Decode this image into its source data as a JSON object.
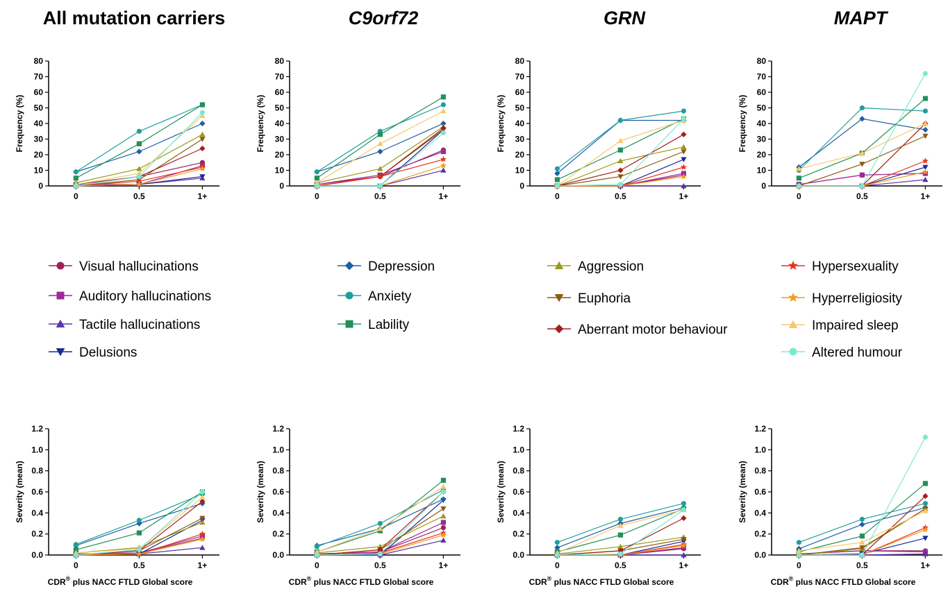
{
  "chart_data": {
    "type": "line",
    "columns": [
      {
        "title": "All mutation carriers",
        "italic": false
      },
      {
        "title": "C9orf72",
        "italic": true
      },
      {
        "title": "GRN",
        "italic": true
      },
      {
        "title": "MAPT",
        "italic": true
      }
    ],
    "x_categories": [
      "0",
      "0.5",
      "1+"
    ],
    "frequency_axis": {
      "ylabel": "Frequency (%)",
      "ylim": [
        0,
        80
      ],
      "ticks": [
        "0",
        "10",
        "20",
        "30",
        "40",
        "50",
        "60",
        "70",
        "80"
      ]
    },
    "severity_axis": {
      "ylabel": "Severity (mean)",
      "xlabel_main": "CDR",
      "xlabel_sup": "®",
      "xlabel_rest": " plus NACC FTLD Global score",
      "ylim": [
        0,
        1.2
      ],
      "ticks": [
        "0.0",
        "0.2",
        "0.4",
        "0.6",
        "0.8",
        "1.0",
        "1.2"
      ]
    },
    "series": [
      {
        "name": "Visual hallucinations",
        "color": "#9b2457",
        "marker": "circle"
      },
      {
        "name": "Auditory hallucinations",
        "color": "#9c2a9c",
        "marker": "square"
      },
      {
        "name": "Tactile hallucinations",
        "color": "#5a35a8",
        "marker": "triangle-up"
      },
      {
        "name": "Delusions",
        "color": "#1a2a96",
        "marker": "triangle-down"
      },
      {
        "name": "Depression",
        "color": "#1f5fa6",
        "marker": "diamond"
      },
      {
        "name": "Anxiety",
        "color": "#1f9e9e",
        "marker": "circle"
      },
      {
        "name": "Lability",
        "color": "#21915a",
        "marker": "square"
      },
      {
        "name": "Aggression",
        "color": "#9a9a1e",
        "marker": "triangle-up"
      },
      {
        "name": "Euphoria",
        "color": "#8c5a10",
        "marker": "triangle-down"
      },
      {
        "name": "Aberrant motor behaviour",
        "color": "#a3201f",
        "marker": "diamond"
      },
      {
        "name": "Hypersexuality",
        "color": "#e8321e",
        "marker": "star"
      },
      {
        "name": "Hyperreligiosity",
        "color": "#f39a1a",
        "marker": "star"
      },
      {
        "name": "Impaired sleep",
        "color": "#f7c86a",
        "marker": "triangle-up"
      },
      {
        "name": "Altered humour",
        "color": "#7de8d2",
        "marker": "circle"
      }
    ],
    "frequency": [
      [
        [
          1,
          6,
          15
        ],
        [
          1,
          1,
          13
        ],
        [
          0,
          1,
          5
        ],
        [
          0,
          1,
          6
        ],
        [
          9,
          22,
          40
        ],
        [
          9,
          35,
          52
        ],
        [
          5,
          27,
          52
        ],
        [
          2,
          11,
          33
        ],
        [
          0,
          4,
          30
        ],
        [
          0,
          6,
          24
        ],
        [
          0,
          3,
          12
        ],
        [
          0,
          1,
          11
        ],
        [
          1,
          8,
          45
        ],
        [
          0,
          6,
          47
        ]
      ],
      [
        [
          1,
          6,
          23
        ],
        [
          1,
          7,
          22
        ],
        [
          0,
          0,
          10
        ],
        [
          0,
          0,
          36
        ],
        [
          9,
          22,
          40
        ],
        [
          9,
          35,
          52
        ],
        [
          5,
          33,
          57
        ],
        [
          2,
          11,
          38
        ],
        [
          0,
          6,
          36
        ],
        [
          0,
          6,
          37
        ],
        [
          0,
          6,
          17
        ],
        [
          0,
          0,
          13
        ],
        [
          2,
          27,
          48
        ],
        [
          0,
          0,
          34
        ]
      ],
      [
        [
          0,
          0,
          7
        ],
        [
          0,
          0,
          8
        ],
        [
          0,
          0,
          0
        ],
        [
          0,
          0,
          17
        ],
        [
          8,
          42,
          42
        ],
        [
          11,
          42,
          48
        ],
        [
          4,
          23,
          43
        ],
        [
          0,
          16,
          25
        ],
        [
          0,
          6,
          22
        ],
        [
          0,
          10,
          33
        ],
        [
          0,
          0,
          12
        ],
        [
          0,
          0,
          6
        ],
        [
          0,
          29,
          42
        ],
        [
          0,
          1,
          43
        ]
      ],
      [
        [
          1,
          7,
          8
        ],
        [
          1,
          7,
          8
        ],
        [
          0,
          0,
          4
        ],
        [
          0,
          0,
          12
        ],
        [
          12,
          43,
          36
        ],
        [
          10,
          50,
          48
        ],
        [
          5,
          21,
          56
        ],
        [
          0,
          0,
          40
        ],
        [
          0,
          14,
          32
        ],
        [
          0,
          0,
          40
        ],
        [
          0,
          0,
          16
        ],
        [
          0,
          0,
          9
        ],
        [
          11,
          21,
          40
        ],
        [
          0,
          0,
          72
        ]
      ]
    ],
    "severity": [
      [
        [
          0.01,
          0.02,
          0.16
        ],
        [
          0.01,
          0.02,
          0.18
        ],
        [
          0,
          0.01,
          0.07
        ],
        [
          0,
          0.01,
          0.33
        ],
        [
          0.09,
          0.3,
          0.49
        ],
        [
          0.1,
          0.33,
          0.58
        ],
        [
          0.05,
          0.21,
          0.6
        ],
        [
          0.02,
          0.07,
          0.31
        ],
        [
          0,
          0.04,
          0.35
        ],
        [
          0,
          0.04,
          0.51
        ],
        [
          0,
          0.01,
          0.2
        ],
        [
          0,
          0.01,
          0.15
        ],
        [
          0.02,
          0.06,
          0.55
        ],
        [
          0,
          0.05,
          0.6
        ]
      ],
      [
        [
          0.01,
          0.03,
          0.26
        ],
        [
          0.01,
          0.03,
          0.31
        ],
        [
          0,
          0,
          0.14
        ],
        [
          0,
          0,
          0.52
        ],
        [
          0.09,
          0.25,
          0.53
        ],
        [
          0.08,
          0.3,
          0.62
        ],
        [
          0.03,
          0.23,
          0.71
        ],
        [
          0.02,
          0.08,
          0.37
        ],
        [
          0,
          0.05,
          0.44
        ],
        [
          0,
          0.05,
          0.6
        ],
        [
          0,
          0.02,
          0.21
        ],
        [
          0,
          0.01,
          0.19
        ],
        [
          0.03,
          0.25,
          0.65
        ],
        [
          0,
          0.01,
          0.6
        ]
      ],
      [
        [
          0,
          0,
          0.06
        ],
        [
          0,
          0,
          0.07
        ],
        [
          0,
          0,
          0
        ],
        [
          0,
          0,
          0.13
        ],
        [
          0.07,
          0.3,
          0.45
        ],
        [
          0.12,
          0.34,
          0.49
        ],
        [
          0.03,
          0.19,
          0.44
        ],
        [
          0.01,
          0.08,
          0.17
        ],
        [
          0,
          0.04,
          0.15
        ],
        [
          0,
          0.04,
          0.35
        ],
        [
          0,
          0,
          0.1
        ],
        [
          0,
          0,
          0.09
        ],
        [
          0.02,
          0.28,
          0.43
        ],
        [
          0,
          0.01,
          0.43
        ]
      ],
      [
        [
          0.01,
          0.04,
          0.04
        ],
        [
          0.01,
          0.04,
          0.03
        ],
        [
          0,
          0,
          0.01
        ],
        [
          0,
          0.01,
          0.16
        ],
        [
          0.06,
          0.29,
          0.45
        ],
        [
          0.12,
          0.34,
          0.49
        ],
        [
          0.03,
          0.18,
          0.68
        ],
        [
          0,
          0.06,
          0.44
        ],
        [
          0,
          0.07,
          0.44
        ],
        [
          0,
          0,
          0.56
        ],
        [
          0,
          0,
          0.26
        ],
        [
          0,
          0,
          0.24
        ],
        [
          0.04,
          0.12,
          0.42
        ],
        [
          0,
          0,
          1.12
        ]
      ]
    ]
  }
}
